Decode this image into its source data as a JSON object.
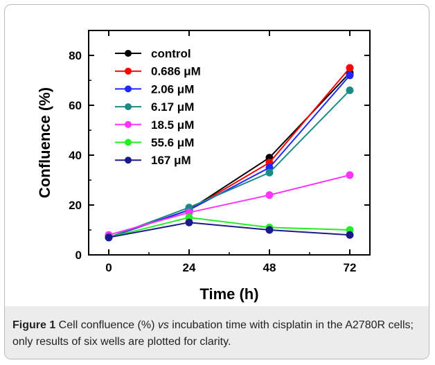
{
  "chart_data": {
    "type": "line",
    "xlabel": "Time (h)",
    "ylabel": "Confluence (%)",
    "x": [
      0,
      24,
      48,
      72
    ],
    "xticks": [
      "0",
      "24",
      "48",
      "72"
    ],
    "yticks": [
      "0",
      "20",
      "40",
      "60",
      "80"
    ],
    "xlim": [
      -6,
      78
    ],
    "ylim": [
      0,
      90
    ],
    "grid": false,
    "legend_position": "top-left",
    "series": [
      {
        "name": "control",
        "color": "#000000",
        "values": [
          7,
          18,
          39,
          73
        ]
      },
      {
        "name": "0.686 μM",
        "color": "#ff0000",
        "values": [
          7,
          18,
          37,
          75
        ]
      },
      {
        "name": "2.06 μM",
        "color": "#1e28ff",
        "values": [
          7,
          18,
          35,
          72
        ]
      },
      {
        "name": "6.17 μM",
        "color": "#1a8a86",
        "values": [
          7,
          19,
          33,
          66
        ]
      },
      {
        "name": "18.5 μM",
        "color": "#ff33ff",
        "values": [
          8,
          17,
          24,
          32
        ]
      },
      {
        "name": "55.6 μM",
        "color": "#22ee22",
        "values": [
          7,
          15,
          11,
          10
        ]
      },
      {
        "name": "167 μM",
        "color": "#1a1a8c",
        "values": [
          7,
          13,
          10,
          8
        ]
      }
    ]
  },
  "caption": {
    "figure_label": "Figure 1",
    "text_part1": " Cell confluence (%) ",
    "text_italic": "vs",
    "text_part2": " incubation time with cisplatin in the A2780R cells; only results of six wells are plotted for clarity",
    "period": "."
  }
}
